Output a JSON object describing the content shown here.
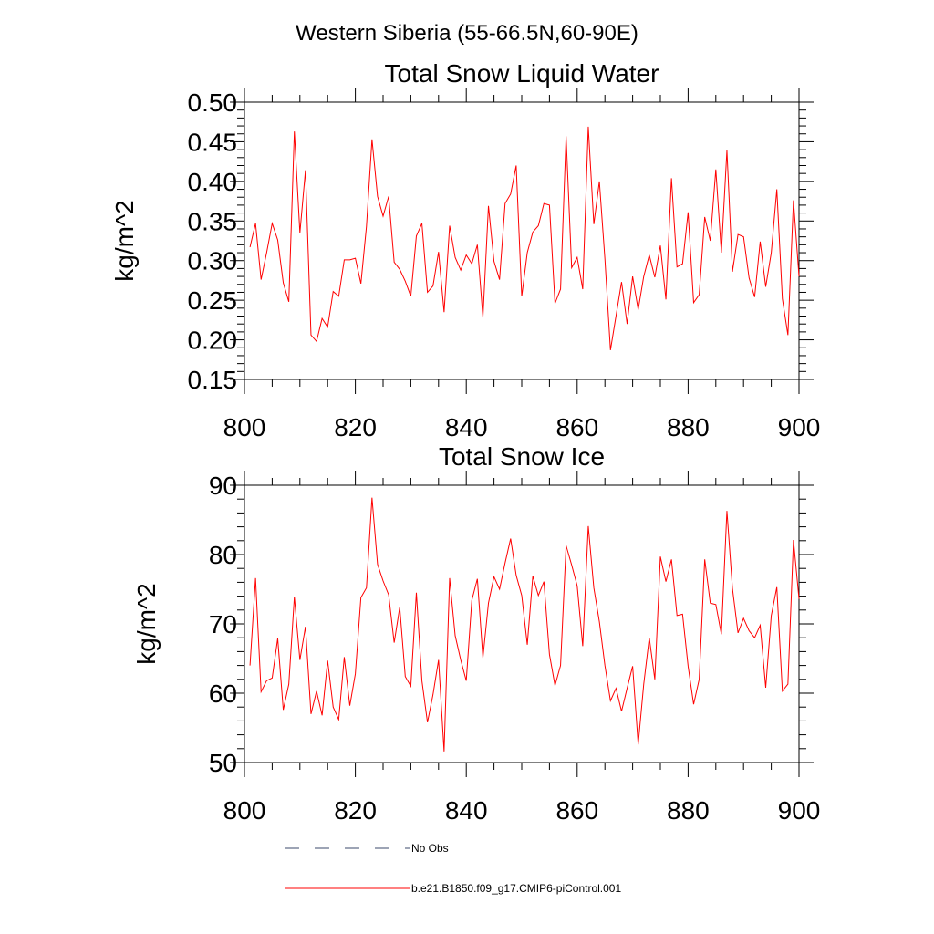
{
  "suptitle": "Western Siberia (55-66.5N,60-90E)",
  "legend": {
    "placement": "bottom-left",
    "items": [
      {
        "label": "No Obs",
        "style": "dashed",
        "color": "#3b4a6b"
      },
      {
        "label": "b.e21.B1850.f09_g17.CMIP6-piControl.001",
        "style": "solid",
        "color": "#ff0000"
      }
    ]
  },
  "chart_data": [
    {
      "type": "line",
      "title": "Total Snow Liquid Water",
      "xlabel": "",
      "ylabel": "kg/m^2",
      "xlim": [
        800,
        900
      ],
      "ylim": [
        0.15,
        0.5
      ],
      "xticks": [
        800,
        820,
        840,
        860,
        880,
        900
      ],
      "xtick_labels": [
        "800",
        "820",
        "840",
        "860",
        "880",
        "900"
      ],
      "yticks": [
        0.15,
        0.2,
        0.25,
        0.3,
        0.35,
        0.4,
        0.45,
        0.5
      ],
      "ytick_labels": [
        "0.15",
        "0.20",
        "0.25",
        "0.30",
        "0.35",
        "0.40",
        "0.45",
        "0.50"
      ],
      "grid": false,
      "series": [
        {
          "name": "b.e21.B1850.f09_g17.CMIP6-piControl.001",
          "color": "#ff0000",
          "x_start": 801,
          "values": [
            0.317,
            0.347,
            0.276,
            0.31,
            0.347,
            0.326,
            0.272,
            0.248,
            0.463,
            0.335,
            0.414,
            0.206,
            0.198,
            0.227,
            0.216,
            0.261,
            0.255,
            0.301,
            0.301,
            0.303,
            0.271,
            0.343,
            0.453,
            0.381,
            0.356,
            0.381,
            0.298,
            0.289,
            0.274,
            0.255,
            0.331,
            0.347,
            0.26,
            0.268,
            0.311,
            0.235,
            0.344,
            0.304,
            0.288,
            0.307,
            0.296,
            0.32,
            0.228,
            0.369,
            0.299,
            0.276,
            0.372,
            0.384,
            0.42,
            0.255,
            0.31,
            0.336,
            0.344,
            0.372,
            0.37,
            0.246,
            0.264,
            0.457,
            0.291,
            0.304,
            0.264,
            0.469,
            0.346,
            0.4,
            0.302,
            0.187,
            0.23,
            0.273,
            0.22,
            0.28,
            0.238,
            0.28,
            0.307,
            0.279,
            0.319,
            0.251,
            0.404,
            0.292,
            0.296,
            0.361,
            0.247,
            0.257,
            0.355,
            0.325,
            0.415,
            0.31,
            0.439,
            0.286,
            0.333,
            0.33,
            0.278,
            0.254,
            0.324,
            0.267,
            0.31,
            0.39,
            0.252,
            0.206,
            0.376,
            0.28
          ]
        }
      ]
    },
    {
      "type": "line",
      "title": "Total Snow Ice",
      "xlabel": "",
      "ylabel": "kg/m^2",
      "xlim": [
        800,
        900
      ],
      "ylim": [
        50,
        90
      ],
      "xticks": [
        800,
        820,
        840,
        860,
        880,
        900
      ],
      "xtick_labels": [
        "800",
        "820",
        "840",
        "860",
        "880",
        "900"
      ],
      "yticks": [
        50,
        60,
        70,
        80,
        90
      ],
      "ytick_labels": [
        "50",
        "60",
        "70",
        "80",
        "90"
      ],
      "grid": false,
      "series": [
        {
          "name": "b.e21.B1850.f09_g17.CMIP6-piControl.001",
          "color": "#ff0000",
          "x_start": 801,
          "values": [
            64.0,
            76.6,
            60.2,
            61.8,
            62.2,
            67.9,
            57.6,
            61.3,
            73.9,
            64.8,
            69.6,
            57.0,
            60.3,
            56.8,
            64.7,
            58.0,
            56.2,
            65.2,
            58.2,
            62.8,
            73.8,
            75.2,
            88.2,
            78.6,
            76.2,
            74.2,
            67.3,
            72.4,
            62.4,
            61.0,
            74.5,
            61.8,
            55.8,
            59.8,
            64.8,
            51.6,
            76.6,
            68.3,
            64.8,
            61.8,
            73.4,
            76.5,
            65.1,
            73.0,
            76.8,
            75.0,
            78.8,
            82.3,
            77.0,
            74.1,
            67.0,
            76.9,
            74.1,
            76.1,
            65.6,
            61.1,
            64.0,
            81.3,
            78.5,
            75.5,
            66.8,
            84.1,
            75.2,
            70.3,
            64.0,
            58.9,
            60.7,
            57.4,
            60.7,
            63.9,
            52.6,
            61.3,
            68.0,
            62.0,
            79.7,
            76.1,
            79.3,
            71.2,
            71.4,
            63.9,
            58.4,
            62.0,
            79.3,
            73.0,
            72.8,
            68.5,
            86.3,
            75.1,
            68.7,
            70.8,
            69.0,
            68.0,
            69.8,
            60.8,
            71.2,
            75.3,
            60.3,
            61.3,
            82.1,
            73.6
          ]
        }
      ]
    }
  ]
}
